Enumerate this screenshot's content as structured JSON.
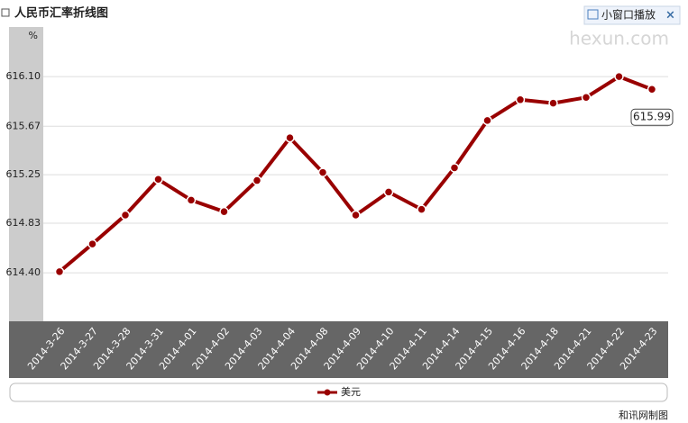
{
  "chart_data": {
    "type": "line",
    "title": "人民币汇率折线图",
    "y_label": "%",
    "categories": [
      "2014-3-26",
      "2014-3-27",
      "2014-3-28",
      "2014-3-31",
      "2014-4-01",
      "2014-4-02",
      "2014-4-03",
      "2014-4-04",
      "2014-4-08",
      "2014-4-09",
      "2014-4-10",
      "2014-4-11",
      "2014-4-14",
      "2014-4-15",
      "2014-4-16",
      "2014-4-18",
      "2014-4-21",
      "2014-4-22",
      "2014-4-23"
    ],
    "series": [
      {
        "name": "美元",
        "color": "#990000",
        "values": [
          614.41,
          614.65,
          614.9,
          615.21,
          615.03,
          614.93,
          615.2,
          615.57,
          615.27,
          614.9,
          615.1,
          614.95,
          615.31,
          615.72,
          615.9,
          615.87,
          615.92,
          616.1,
          615.99
        ]
      }
    ],
    "ylim": [
      613.98,
      616.53
    ],
    "yticks": [
      {
        "value": 614.4,
        "label": "614.40"
      },
      614.83,
      615.25,
      615.67,
      {
        "value": 616.1,
        "label": "616.10"
      }
    ],
    "grid": true
  },
  "ui": {
    "button": "小窗口播放",
    "close": "×",
    "watermark": "hexun.com",
    "credit": "和讯网制图"
  }
}
